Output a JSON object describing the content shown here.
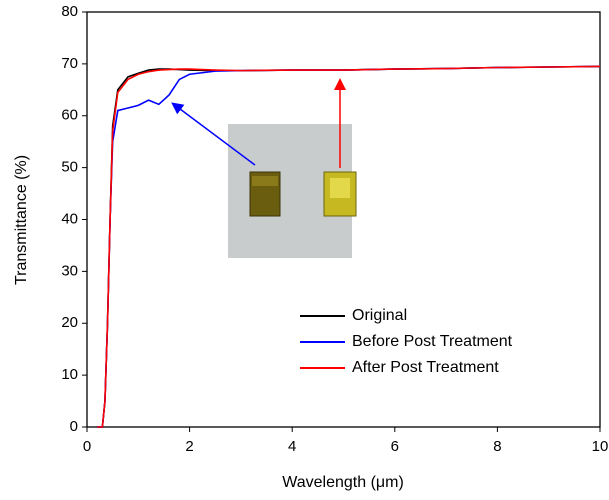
{
  "chart_data": {
    "type": "line",
    "x_label": "Wavelength (μm)",
    "y_label": "Transmittance (%)",
    "x": [
      0.2,
      0.3,
      0.35,
      0.4,
      0.45,
      0.5,
      0.6,
      0.8,
      1.0,
      1.2,
      1.4,
      1.6,
      1.8,
      2.0,
      2.5,
      3,
      4,
      5,
      6,
      7,
      8,
      9,
      10
    ],
    "series": [
      {
        "name": "Original",
        "color": "#000000",
        "values": [
          0,
          0,
          5,
          20,
          40,
          58,
          65,
          67.5,
          68.2,
          68.8,
          69,
          69,
          68.9,
          68.8,
          68.7,
          68.7,
          68.8,
          68.8,
          69,
          69.1,
          69.3,
          69.4,
          69.5
        ]
      },
      {
        "name": "Before Post Treatment",
        "color": "#0000ff",
        "values": [
          0,
          0,
          5,
          20,
          40,
          55,
          61,
          61.5,
          62,
          63,
          62.2,
          64,
          67,
          68,
          68.6,
          68.7,
          68.8,
          68.8,
          69,
          69.1,
          69.3,
          69.4,
          69.5
        ]
      },
      {
        "name": "After Post Treatment",
        "color": "#ff0000",
        "values": [
          0,
          0,
          5,
          20,
          40,
          57,
          64.5,
          67,
          68,
          68.5,
          68.8,
          68.9,
          69,
          69,
          68.8,
          68.7,
          68.8,
          68.8,
          69,
          69.1,
          69.3,
          69.4,
          69.5
        ]
      }
    ],
    "xlim": [
      0,
      10
    ],
    "xticks": [
      0,
      2,
      4,
      6,
      8,
      10
    ],
    "ylim": [
      0,
      80
    ],
    "yticks": [
      0,
      10,
      20,
      30,
      40,
      50,
      60,
      70,
      80
    ],
    "legend": "center right"
  }
}
